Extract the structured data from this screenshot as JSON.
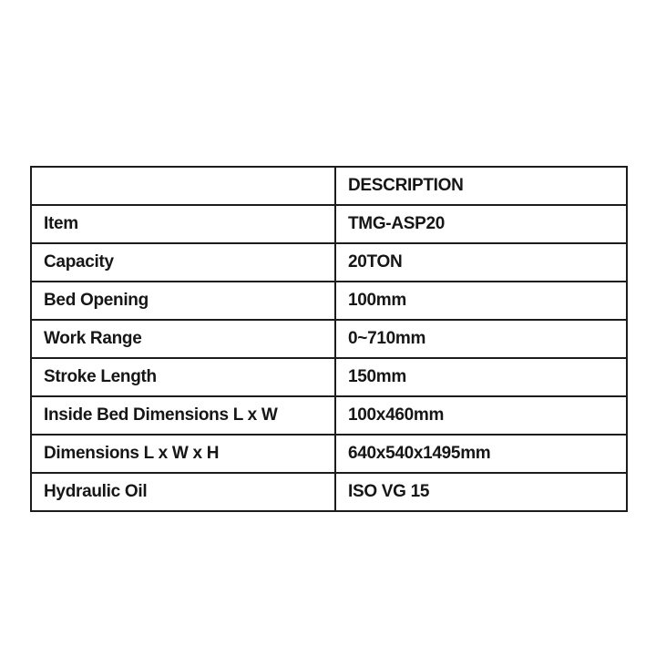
{
  "chart_data": {
    "type": "table",
    "title": "",
    "columns": [
      "",
      "DESCRIPTION"
    ],
    "rows": [
      [
        "Item",
        "TMG-ASP20"
      ],
      [
        "Capacity",
        "20TON"
      ],
      [
        "Bed Opening",
        "100mm"
      ],
      [
        "Work Range",
        "0~710mm"
      ],
      [
        "Stroke Length",
        "150mm"
      ],
      [
        "Inside Bed Dimensions L x W",
        "100x460mm"
      ],
      [
        "Dimensions L x W x H",
        "640x540x1495mm"
      ],
      [
        "Hydraulic Oil",
        "ISO VG 15"
      ]
    ],
    "layout": {
      "grid": "on",
      "header_row": true,
      "first_header_cell_empty": true
    }
  },
  "colors": {
    "background": "#ffffff",
    "border": "#1c1c1c",
    "text": "#161616"
  }
}
